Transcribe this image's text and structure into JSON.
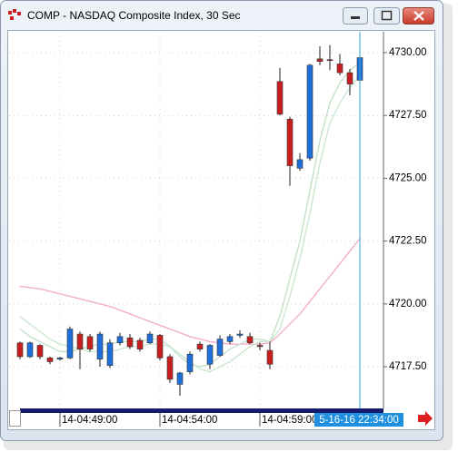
{
  "chart_data": {
    "type": "candlestick",
    "title": "COMP - NASDAQ Composite Index, 30 Sec",
    "categories": [
      null,
      null,
      null,
      null,
      "14-04:49:00",
      null,
      null,
      null,
      null,
      null,
      null,
      null,
      null,
      null,
      "14-04:54:00",
      null,
      null,
      null,
      null,
      null,
      null,
      null,
      null,
      null,
      "14-04:59:00",
      null,
      null,
      null,
      null,
      null,
      null,
      null,
      null,
      null,
      null
    ],
    "open": [
      4718.45,
      4717.9,
      4718.35,
      4717.85,
      4717.8,
      4717.85,
      4718.8,
      4718.7,
      4717.8,
      4717.55,
      4718.45,
      4718.65,
      4718.55,
      4718.45,
      4718.75,
      4717.9,
      4716.8,
      4717.3,
      4718.4,
      4717.6,
      4717.95,
      4718.5,
      4718.75,
      4718.7,
      4718.35,
      4718.15,
      4728.85,
      4727.35,
      4725.4,
      4725.8,
      4729.75,
      4729.72,
      4729.55,
      4729.2,
      4728.9
    ],
    "high": [
      4718.5,
      4718.5,
      4718.4,
      4717.9,
      4717.9,
      4719.1,
      4718.9,
      4718.8,
      4718.9,
      4718.6,
      4718.85,
      4718.8,
      4718.65,
      4718.9,
      4718.8,
      4718.0,
      4717.3,
      4718.1,
      4718.5,
      4718.4,
      4718.75,
      4718.8,
      4718.95,
      4718.85,
      4718.45,
      4718.5,
      4729.4,
      4727.45,
      4726.0,
      4729.55,
      4730.25,
      4730.3,
      4729.95,
      4729.35,
      4729.85
    ],
    "low": [
      4717.8,
      4717.85,
      4717.8,
      4717.6,
      4717.75,
      4717.8,
      4717.4,
      4718.1,
      4717.5,
      4717.45,
      4718.35,
      4718.2,
      4718.1,
      4718.4,
      4717.75,
      4716.85,
      4716.35,
      4717.2,
      4718.1,
      4717.4,
      4717.9,
      4718.4,
      4718.65,
      4718.4,
      4718.15,
      4717.4,
      4727.5,
      4724.7,
      4725.3,
      4725.7,
      4729.5,
      4729.3,
      4729.1,
      4728.3,
      4728.2
    ],
    "close": [
      4717.9,
      4718.45,
      4717.9,
      4717.7,
      4717.85,
      4719.0,
      4718.2,
      4718.2,
      4718.8,
      4718.45,
      4718.7,
      4718.3,
      4718.2,
      4718.8,
      4717.85,
      4717.0,
      4717.25,
      4718.0,
      4718.2,
      4718.35,
      4718.6,
      4718.7,
      4718.8,
      4718.45,
      4718.3,
      4717.6,
      4727.55,
      4725.5,
      4725.74,
      4729.5,
      4729.65,
      4729.7,
      4729.2,
      4728.75,
      4729.8
    ],
    "up_color": "#1e6fd9",
    "down_color": "#c81e1e",
    "overlays": [
      {
        "color": "#f4a6c8",
        "values": [
          4720.7,
          4720.65,
          4720.6,
          4720.5,
          4720.4,
          4720.3,
          4720.2,
          4720.1,
          4720.0,
          4719.9,
          4719.75,
          4719.6,
          4719.45,
          4719.3,
          4719.15,
          4719.0,
          4718.85,
          4718.7,
          4718.6,
          4718.5,
          4718.45,
          4718.4,
          4718.4,
          4718.4,
          4718.4,
          4718.45,
          4718.8,
          4719.2,
          4719.6,
          4720.1,
          4720.6,
          4721.1,
          4721.6,
          4722.1,
          4722.6
        ]
      },
      {
        "color": "#bfe0c4",
        "values": [
          4719.0,
          4718.7,
          4718.5,
          4718.3,
          4718.1,
          4718.1,
          4718.2,
          4718.3,
          4718.4,
          4718.4,
          4718.5,
          4718.5,
          4718.5,
          4718.6,
          4718.6,
          4718.3,
          4717.9,
          4717.6,
          4717.5,
          4717.6,
          4717.9,
          4718.2,
          4718.4,
          4718.6,
          4718.6,
          4718.5,
          4719.5,
          4721.0,
          4722.5,
          4724.5,
          4726.5,
          4728.0,
          4728.8,
          4729.3,
          4729.6
        ]
      },
      {
        "color": "#c8e6cc",
        "values": [
          4719.5,
          4719.2,
          4718.9,
          4718.6,
          4718.4,
          4718.3,
          4718.2,
          4718.1,
          4718.1,
          4718.1,
          4718.2,
          4718.3,
          4718.3,
          4718.4,
          4718.4,
          4718.3,
          4718.0,
          4717.7,
          4717.4,
          4717.3,
          4717.5,
          4717.7,
          4718.0,
          4718.3,
          4718.5,
          4718.5,
          4719.0,
          4720.3,
          4721.8,
          4723.6,
          4725.6,
          4727.2,
          4728.0,
          4728.6,
          4729.1
        ]
      }
    ],
    "ylim": [
      4715.84,
      4730.83
    ],
    "yticks": [
      {
        "value": 4717.5,
        "label": "4717.50"
      },
      {
        "value": 4720,
        "label": "4720.00"
      },
      {
        "value": 4722.5,
        "label": "4722.50"
      },
      {
        "value": 4725,
        "label": "4725.00"
      },
      {
        "value": 4727.5,
        "label": "4727.50"
      },
      {
        "value": 4730,
        "label": "4730.00"
      }
    ],
    "grid": true,
    "crosshair_color": "#3aa0c8",
    "crosshair_label": "5-16-16 22:34:00"
  }
}
